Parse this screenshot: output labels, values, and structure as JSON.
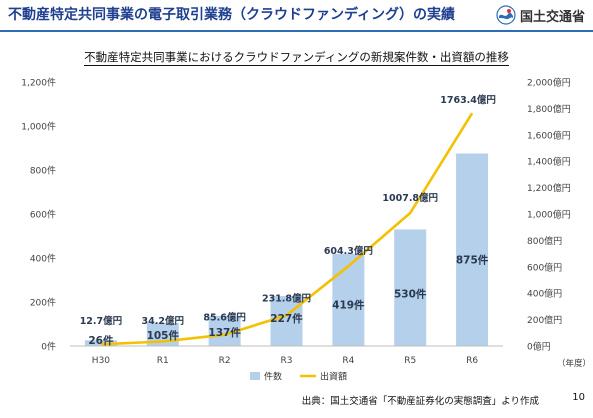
{
  "header": {
    "title": "不動産特定共同事業の電子取引業務（クラウドファンディング）の実績",
    "logo_text": "国土交通省"
  },
  "footer": {
    "source": "出典：国土交通省「不動産証券化の実態調査」より作成",
    "page_number": "10"
  },
  "colors": {
    "title": "#1f3f8f",
    "bar": "#b4d0ea",
    "line": "#f5c000",
    "rule": "#2e6db4"
  },
  "chart_data": {
    "type": "bar",
    "title": "不動産特定共同事業におけるクラウドファンディングの新規案件数・出資額の推移",
    "categories": [
      "H30",
      "R1",
      "R2",
      "R3",
      "R4",
      "R5",
      "R6"
    ],
    "xlabel": "（年度）",
    "series": [
      {
        "name": "件数",
        "type": "bar",
        "axis": "left",
        "values": [
          26,
          105,
          137,
          227,
          419,
          530,
          875
        ],
        "labels": [
          "26件",
          "105件",
          "137件",
          "227件",
          "419件",
          "530件",
          "875件"
        ]
      },
      {
        "name": "出資額",
        "type": "line",
        "axis": "right",
        "values": [
          12.7,
          34.2,
          85.6,
          231.8,
          604.3,
          1007.8,
          1763.4
        ],
        "labels": [
          "12.7億円",
          "34.2億円",
          "85.6億円",
          "231.8億円",
          "604.3億円",
          "1007.8億円",
          "1763.4億円"
        ]
      }
    ],
    "y_left": {
      "ylim": [
        0,
        1200
      ],
      "ticks": [
        0,
        200,
        400,
        600,
        800,
        1000,
        1200
      ],
      "tick_labels": [
        "0件",
        "200件",
        "400件",
        "600件",
        "800件",
        "1,000件",
        "1,200件"
      ]
    },
    "y_right": {
      "ylim": [
        0,
        2000
      ],
      "ticks": [
        0,
        200,
        400,
        600,
        800,
        1000,
        1200,
        1400,
        1600,
        1800,
        2000
      ],
      "tick_labels": [
        "0億円",
        "200億円",
        "400億円",
        "600億円",
        "800億円",
        "1,000億円",
        "1,200億円",
        "1,400億円",
        "1,600億円",
        "1,800億円",
        "2,000億円"
      ]
    },
    "grid": false,
    "legend": "bottom"
  }
}
